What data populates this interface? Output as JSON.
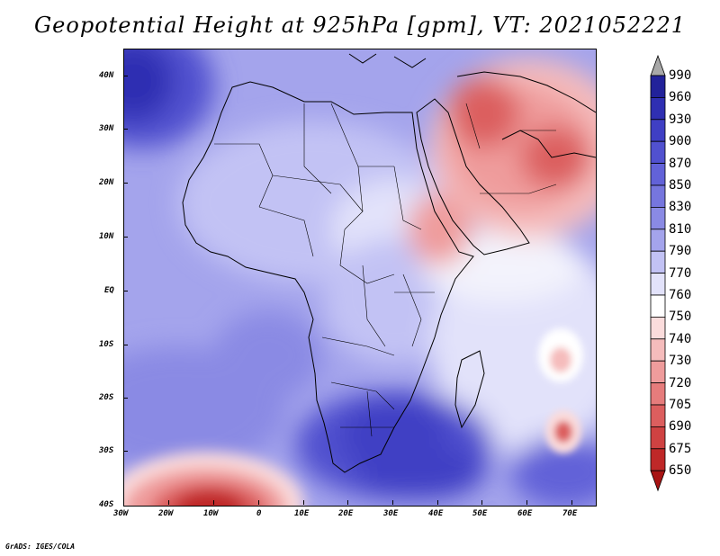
{
  "title": "Geopotential Height at 925hPa [gpm], VT: 2021052221",
  "credit": "GrADS: IGES/COLA",
  "x_axis": {
    "labels": [
      "30W",
      "20W",
      "10W",
      "0",
      "10E",
      "20E",
      "30E",
      "40E",
      "50E",
      "60E",
      "70E"
    ],
    "values": [
      -30,
      -20,
      -10,
      0,
      10,
      20,
      30,
      40,
      50,
      60,
      70
    ]
  },
  "y_axis": {
    "labels": [
      "40N",
      "30N",
      "20N",
      "10N",
      "EQ",
      "10S",
      "20S",
      "30S",
      "40S"
    ],
    "values": [
      40,
      30,
      20,
      10,
      0,
      -10,
      -20,
      -30,
      -40
    ]
  },
  "colorbar": {
    "levels": [
      "990",
      "960",
      "930",
      "900",
      "870",
      "850",
      "830",
      "810",
      "790",
      "770",
      "760",
      "750",
      "740",
      "730",
      "720",
      "705",
      "690",
      "675",
      "650"
    ],
    "colors": [
      "#a8a8a8",
      "#22229a",
      "#2f2fb2",
      "#3f3fc4",
      "#5151cf",
      "#6262d8",
      "#7676de",
      "#8a8ae4",
      "#a4a4ec",
      "#c2c2f4",
      "#e2e2fa",
      "#ffffff",
      "#fbdcdc",
      "#f5bcbc",
      "#ef9c9c",
      "#e67c7c",
      "#dc5e5e",
      "#cf4242",
      "#bf2828",
      "#a81414"
    ]
  }
}
